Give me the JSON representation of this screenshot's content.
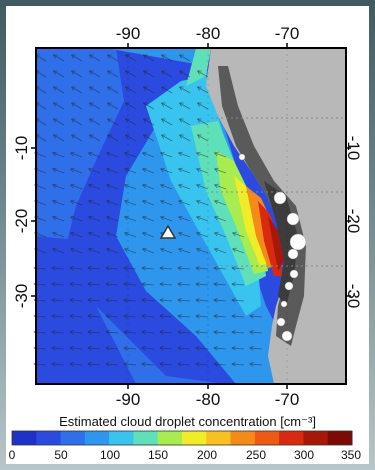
{
  "top_lon_labels": [
    "-90",
    "-80",
    "-70"
  ],
  "bottom_lon_labels": [
    "-90",
    "-80",
    "-70"
  ],
  "left_lat_labels": [
    "-10",
    "-20",
    "-30"
  ],
  "right_lat_labels": [
    "-10",
    "-20",
    "-30"
  ],
  "colorbar": {
    "title": "Estimated cloud droplet concentration [cm⁻³]",
    "tick_labels": [
      "0",
      "50",
      "100",
      "150",
      "200",
      "250",
      "300",
      "350"
    ],
    "colors": [
      "#1e32c8",
      "#2a4ae0",
      "#2f6fea",
      "#2f96ee",
      "#38c4ee",
      "#5fe0b8",
      "#a8ec50",
      "#f0ec28",
      "#f8c020",
      "#f48a18",
      "#ee5a14",
      "#d82a10",
      "#a81808",
      "#7a0c04"
    ]
  },
  "map": {
    "ocean_concentration_levels": "colored by cloud droplet concentration",
    "marker": "triangle",
    "land_color": "#b8b8b8",
    "mountain_color": "#5a5a5a"
  }
}
